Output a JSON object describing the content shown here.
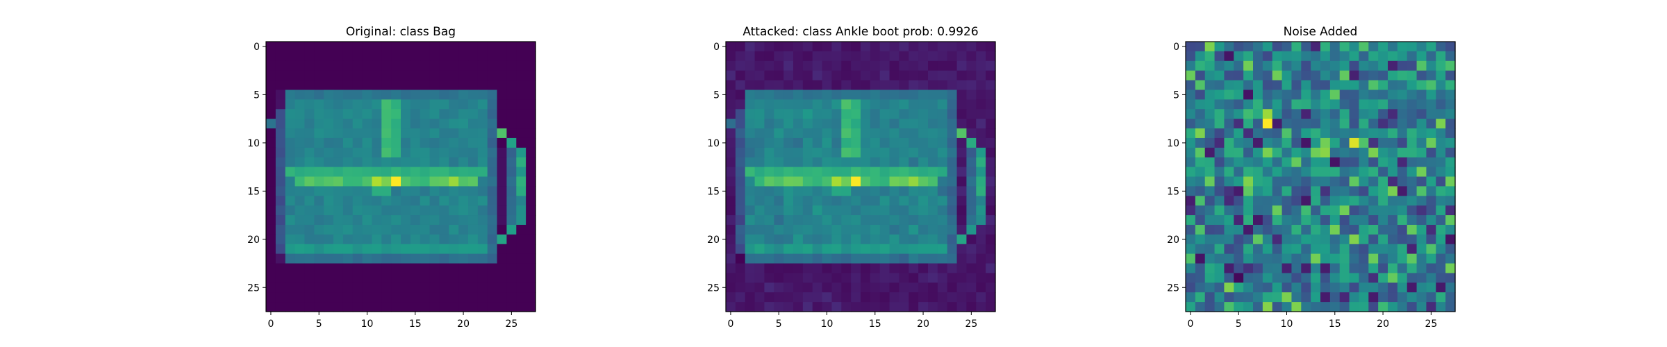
{
  "chart_data": [
    {
      "type": "heatmap",
      "title": "Original: class Bag",
      "xticks": [
        0,
        5,
        10,
        15,
        20,
        25
      ],
      "yticks": [
        0,
        5,
        10,
        15,
        20,
        25
      ],
      "xlim": [
        -0.5,
        27.5
      ],
      "ylim": [
        27.5,
        -0.5
      ],
      "colormap": "viridis",
      "content": "28x28 image of a handbag; body approx rows 5-22, cols 1-23; handle right side cols 24-26"
    },
    {
      "type": "heatmap",
      "title": "Attacked: class Ankle boot prob: 0.9926",
      "xticks": [
        0,
        5,
        10,
        15,
        20,
        25
      ],
      "yticks": [
        0,
        5,
        10,
        15,
        20,
        25
      ],
      "xlim": [
        -0.5,
        27.5
      ],
      "ylim": [
        27.5,
        -0.5
      ],
      "colormap": "viridis",
      "content": "same handbag with low-amplitude adversarial noise added to background"
    },
    {
      "type": "heatmap",
      "title": "Noise Added",
      "xticks": [
        0,
        5,
        10,
        15,
        20,
        25
      ],
      "yticks": [
        0,
        5,
        10,
        15,
        20,
        25
      ],
      "xlim": [
        -0.5,
        27.5
      ],
      "ylim": [
        27.5,
        -0.5
      ],
      "colormap": "viridis",
      "content": "28x28 random adversarial perturbation pattern"
    }
  ],
  "colors": {
    "viridis_0": "#440154",
    "viridis_1": "#3b528b",
    "viridis_2": "#21918c",
    "viridis_3": "#5ec962",
    "viridis_4": "#fde725"
  }
}
